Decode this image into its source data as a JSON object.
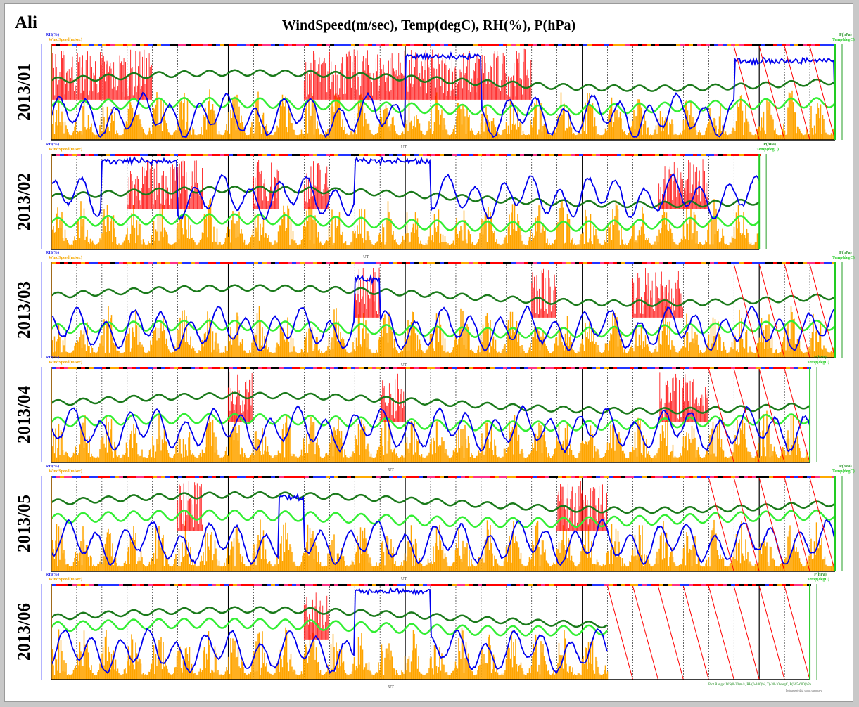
{
  "header": {
    "site": "Ali",
    "title": "WindSpeed(m/sec), Temp(degC), RH(%), P(hPa)"
  },
  "axis_labels": {
    "left_top": "RH(%)",
    "left_bottom": "WindSpeed(m/sec)",
    "right_top": "P(hPa)",
    "right_bottom": "Temp(degC)",
    "x": "UT"
  },
  "colors": {
    "windspeed": "#ffa500",
    "windspeed_high": "#ff0000",
    "rh": "#0000ee",
    "pressure": "#1a7a1a",
    "temp": "#33ee33",
    "missing": "#ff0000"
  },
  "footer": {
    "legend_line": "Plot Range: WS(0-20)m/s, RH(0-100)%, T(-30-10)degC, P(565-600)hPa",
    "legend_small": "Instrument-data status summary"
  },
  "chart_data": [
    {
      "type": "line",
      "month": "2013/01",
      "days": 31,
      "data_days": 31,
      "missing_from_day": 27,
      "title": "2013/01",
      "series": [
        {
          "name": "WindSpeed(m/sec)"
        },
        {
          "name": "RH(%)"
        },
        {
          "name": "P(hPa)"
        },
        {
          "name": "Temp(degC)"
        }
      ],
      "xlabel": "UT",
      "gusts": [
        [
          0,
          2
        ],
        [
          2,
          4
        ],
        [
          10,
          16
        ],
        [
          16,
          19
        ]
      ],
      "rh_base": 0.25,
      "rh_high": [
        [
          14,
          17,
          0.9
        ],
        [
          27,
          31,
          0.85
        ]
      ],
      "p_level": 0.62,
      "t_level": 0.35,
      "missing_diag": [
        27,
        28,
        29,
        30
      ]
    },
    {
      "type": "line",
      "month": "2013/02",
      "days": 28,
      "data_days": 28,
      "title": "2013/02",
      "series": [
        {
          "name": "WindSpeed(m/sec)"
        },
        {
          "name": "RH(%)"
        },
        {
          "name": "P(hPa)"
        },
        {
          "name": "Temp(degC)"
        }
      ],
      "xlabel": "UT",
      "gusts": [
        [
          3,
          6
        ],
        [
          8,
          9
        ],
        [
          10,
          11
        ],
        [
          24,
          26
        ]
      ],
      "rh_base": 0.55,
      "rh_high": [
        [
          2,
          5,
          0.95
        ],
        [
          12,
          15,
          0.95
        ]
      ],
      "p_level": 0.55,
      "t_level": 0.28,
      "missing_diag": []
    },
    {
      "type": "line",
      "month": "2013/03",
      "days": 31,
      "data_days": 31,
      "title": "2013/03",
      "series": [
        {
          "name": "WindSpeed(m/sec)"
        },
        {
          "name": "RH(%)"
        },
        {
          "name": "P(hPa)"
        },
        {
          "name": "Temp(degC)"
        }
      ],
      "xlabel": "UT",
      "gusts": [
        [
          12,
          13
        ],
        [
          19,
          20
        ],
        [
          23,
          25
        ]
      ],
      "rh_base": 0.3,
      "rh_high": [
        [
          12,
          13,
          0.85
        ]
      ],
      "p_level": 0.65,
      "t_level": 0.3,
      "missing_diag": [
        27,
        28,
        29,
        30
      ]
    },
    {
      "type": "line",
      "month": "2013/04",
      "days": 30,
      "data_days": 30,
      "title": "2013/04",
      "series": [
        {
          "name": "WindSpeed(m/sec)"
        },
        {
          "name": "RH(%)"
        },
        {
          "name": "P(hPa)"
        },
        {
          "name": "Temp(degC)"
        }
      ],
      "xlabel": "UT",
      "gusts": [
        [
          7,
          8
        ],
        [
          13,
          14
        ],
        [
          24,
          26
        ]
      ],
      "rh_base": 0.35,
      "rh_high": [],
      "p_level": 0.62,
      "t_level": 0.42,
      "missing_diag": [
        26,
        27,
        28,
        29
      ]
    },
    {
      "type": "line",
      "month": "2013/05",
      "days": 31,
      "data_days": 31,
      "title": "2013/05",
      "series": [
        {
          "name": "WindSpeed(m/sec)"
        },
        {
          "name": "RH(%)"
        },
        {
          "name": "P(hPa)"
        },
        {
          "name": "Temp(degC)"
        }
      ],
      "xlabel": "UT",
      "gusts": [
        [
          5,
          6
        ],
        [
          20,
          22
        ]
      ],
      "rh_base": 0.3,
      "rh_high": [
        [
          9,
          10,
          0.8
        ]
      ],
      "p_level": 0.72,
      "t_level": 0.55,
      "missing_diag": [
        26,
        27,
        28,
        29,
        30
      ]
    },
    {
      "type": "line",
      "month": "2013/06",
      "days": 30,
      "data_days": 22,
      "title": "2013/06",
      "series": [
        {
          "name": "WindSpeed(m/sec)"
        },
        {
          "name": "RH(%)"
        },
        {
          "name": "P(hPa)"
        },
        {
          "name": "Temp(degC)"
        }
      ],
      "xlabel": "UT",
      "gusts": [
        [
          10,
          11
        ]
      ],
      "rh_base": 0.3,
      "rh_high": [
        [
          12,
          15,
          0.95
        ]
      ],
      "p_level": 0.65,
      "t_level": 0.55,
      "missing_diag": [
        22,
        23,
        24,
        25,
        26,
        27,
        28,
        29
      ]
    }
  ]
}
